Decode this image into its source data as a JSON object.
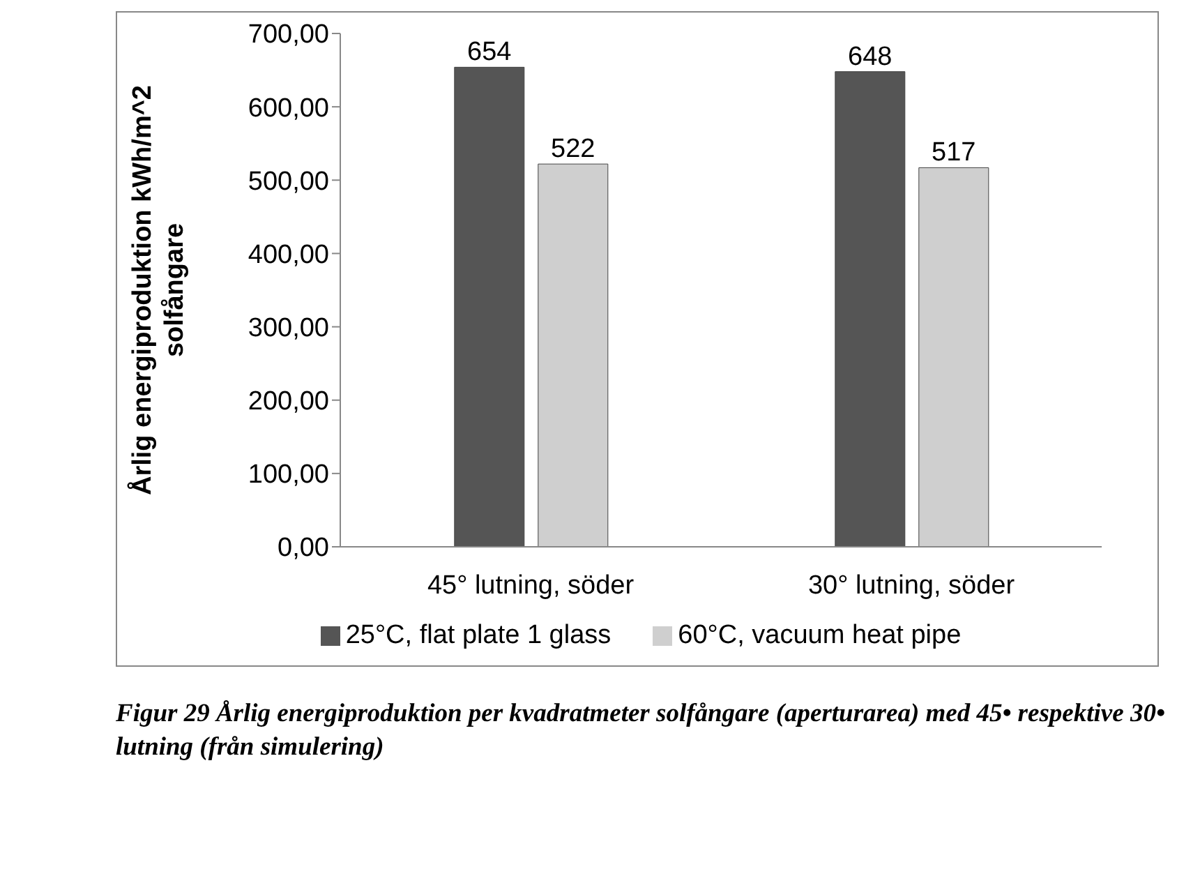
{
  "chart_data": {
    "type": "bar",
    "ylabel": "Årlig energiproduktion kWh/m^2 solfångare",
    "categories": [
      "45° lutning, söder",
      "30° lutning, söder"
    ],
    "series": [
      {
        "name": "25°C, flat plate 1 glass",
        "color": "#555555",
        "values": [
          654,
          648
        ]
      },
      {
        "name": "60°C, vacuum heat pipe",
        "color": "#cfcfcf",
        "values": [
          522,
          517
        ]
      }
    ],
    "ylim": [
      0,
      700
    ],
    "yticks": [
      {
        "value": 0,
        "label": "0,00"
      },
      {
        "value": 100,
        "label": "100,00"
      },
      {
        "value": 200,
        "label": "200,00"
      },
      {
        "value": 300,
        "label": "300,00"
      },
      {
        "value": 400,
        "label": "400,00"
      },
      {
        "value": 500,
        "label": "500,00"
      },
      {
        "value": 600,
        "label": "600,00"
      },
      {
        "value": 700,
        "label": "700,00"
      }
    ],
    "data_labels": true,
    "grid": false,
    "legend": "bottom",
    "annotations": [
      "Figur 29 Årlig energiproduktion per kvadratmeter solfångare (aperturarea) med 45• respektive 30• lutning (från simulering)"
    ]
  }
}
